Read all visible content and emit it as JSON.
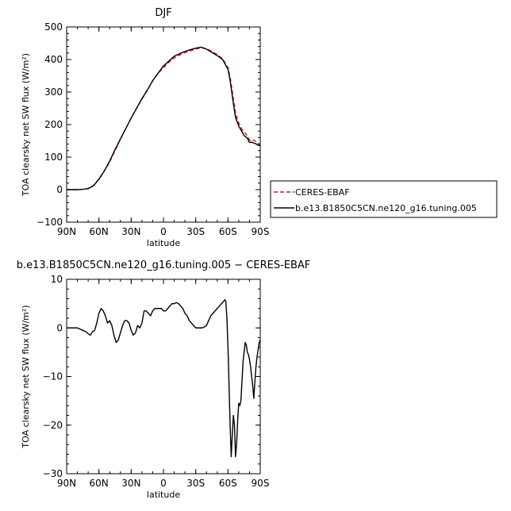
{
  "chart_data": [
    {
      "type": "line",
      "title": "DJF",
      "xlabel": "latitude",
      "ylabel": "TOA clearsky net SW flux (W/m²)",
      "xlim": [
        90,
        -90
      ],
      "ylim": [
        -100,
        500
      ],
      "xticks": [
        90,
        60,
        30,
        0,
        -30,
        -60,
        -90
      ],
      "xtick_labels": [
        "90N",
        "60N",
        "30N",
        "0",
        "30S",
        "60S",
        "90S"
      ],
      "yticks": [
        -100,
        0,
        100,
        200,
        300,
        400,
        500
      ],
      "ytick_labels": [
        "−100",
        "0",
        "100",
        "200",
        "300",
        "400",
        "500"
      ],
      "legend_position": "right",
      "series": [
        {
          "name": "CERES-EBAF",
          "color": "#dd1111",
          "dash": "dashed",
          "x": [
            90,
            85,
            80,
            75,
            70,
            65,
            60,
            55,
            50,
            45,
            40,
            35,
            30,
            25,
            20,
            15,
            10,
            5,
            0,
            -5,
            -10,
            -15,
            -20,
            -25,
            -30,
            -35,
            -40,
            -45,
            -50,
            -55,
            -60,
            -62,
            -65,
            -67,
            -70,
            -73,
            -75,
            -78,
            -80,
            -82,
            -84,
            -86,
            -88,
            -90
          ],
          "y": [
            0,
            0,
            0,
            1,
            4,
            13,
            33,
            58,
            85,
            120,
            155,
            188,
            220,
            250,
            278,
            305,
            335,
            357,
            375,
            392,
            405,
            414,
            421,
            427,
            432,
            436,
            433,
            425,
            415,
            402,
            375,
            345,
            280,
            235,
            205,
            185,
            178,
            165,
            152,
            150,
            152,
            148,
            142,
            138
          ]
        },
        {
          "name": "b.e13.B1850C5CN.ne120_g16.tuning.005",
          "color": "#000000",
          "dash": "solid",
          "x": [
            90,
            85,
            80,
            75,
            70,
            65,
            60,
            55,
            50,
            45,
            40,
            35,
            30,
            25,
            20,
            15,
            10,
            5,
            0,
            -5,
            -10,
            -15,
            -20,
            -25,
            -30,
            -35,
            -40,
            -45,
            -50,
            -55,
            -60,
            -62,
            -65,
            -67,
            -70,
            -73,
            -75,
            -78,
            -80,
            -82,
            -84,
            -86,
            -88,
            -90
          ],
          "y": [
            0,
            0,
            0,
            1,
            3,
            12,
            32,
            57,
            88,
            123,
            156,
            188,
            220,
            250,
            280,
            306,
            335,
            358,
            380,
            395,
            410,
            418,
            425,
            430,
            435,
            438,
            432,
            422,
            412,
            400,
            370,
            335,
            265,
            222,
            195,
            178,
            166,
            158,
            145,
            146,
            143,
            141,
            136,
            135
          ]
        }
      ]
    },
    {
      "type": "line",
      "title": "b.e13.B1850C5CN.ne120_g16.tuning.005 − CERES-EBAF",
      "xlabel": "latitude",
      "ylabel": "TOA clearsky net SW flux (W/m²)",
      "xlim": [
        90,
        -90
      ],
      "ylim": [
        -30,
        10
      ],
      "xticks": [
        90,
        60,
        30,
        0,
        -30,
        -60,
        -90
      ],
      "xtick_labels": [
        "90N",
        "60N",
        "30N",
        "0",
        "30S",
        "60S",
        "90S"
      ],
      "yticks": [
        -30,
        -20,
        -10,
        0,
        10
      ],
      "ytick_labels": [
        "−30",
        "−20",
        "−10",
        "0",
        "10"
      ],
      "series": [
        {
          "color": "#000000",
          "dash": "solid",
          "x": [
            90,
            80,
            75,
            72,
            70,
            68,
            66,
            64,
            62,
            60,
            58,
            56,
            54,
            52,
            50,
            48,
            46,
            44,
            42,
            40,
            38,
            36,
            34,
            32,
            30,
            28,
            26,
            24,
            22,
            20,
            18,
            16,
            14,
            12,
            10,
            8,
            6,
            4,
            2,
            0,
            -2,
            -4,
            -6,
            -8,
            -10,
            -12,
            -14,
            -16,
            -18,
            -20,
            -22,
            -24,
            -26,
            -28,
            -30,
            -32,
            -34,
            -36,
            -38,
            -40,
            -42,
            -44,
            -46,
            -48,
            -50,
            -52,
            -54,
            -56,
            -57,
            -58,
            -59,
            -60,
            -61,
            -62,
            -63,
            -64,
            -65,
            -66,
            -67,
            -68,
            -69,
            -70,
            -71,
            -72,
            -73,
            -74,
            -75,
            -76,
            -77,
            -78,
            -79,
            -80,
            -81,
            -82,
            -83,
            -84,
            -85,
            -86,
            -87,
            -88,
            -89,
            -90
          ],
          "y": [
            0,
            0,
            -0.5,
            -0.8,
            -1.2,
            -1.5,
            -0.8,
            -0.5,
            1.0,
            3.0,
            4.0,
            3.5,
            2.5,
            1.0,
            1.5,
            0.5,
            -1.5,
            -3.0,
            -2.5,
            -1.0,
            0.5,
            1.5,
            1.5,
            1.0,
            -0.5,
            -1.5,
            -1.0,
            0.5,
            0.0,
            1.0,
            3.5,
            3.5,
            3.0,
            2.5,
            3.5,
            4.0,
            4.0,
            4.0,
            4.0,
            3.5,
            3.5,
            4.0,
            4.5,
            5.0,
            5.0,
            5.2,
            5.0,
            4.5,
            4.0,
            3.0,
            2.5,
            1.5,
            1.0,
            0.5,
            0.0,
            0.0,
            0.0,
            0.0,
            0.2,
            0.5,
            1.5,
            2.5,
            3.0,
            3.5,
            4.0,
            4.5,
            5.0,
            5.5,
            5.8,
            5.5,
            2.0,
            -4.0,
            -12.0,
            -20.0,
            -26.5,
            -22.0,
            -18.0,
            -20.0,
            -26.5,
            -24.0,
            -19.0,
            -15.5,
            -16.0,
            -15.0,
            -11.0,
            -7.0,
            -5.0,
            -3.0,
            -3.5,
            -5.0,
            -5.5,
            -6.5,
            -8.0,
            -10.0,
            -12.0,
            -14.5,
            -11.0,
            -8.0,
            -6.0,
            -4.5,
            -3.0,
            -2.5
          ]
        }
      ]
    }
  ]
}
